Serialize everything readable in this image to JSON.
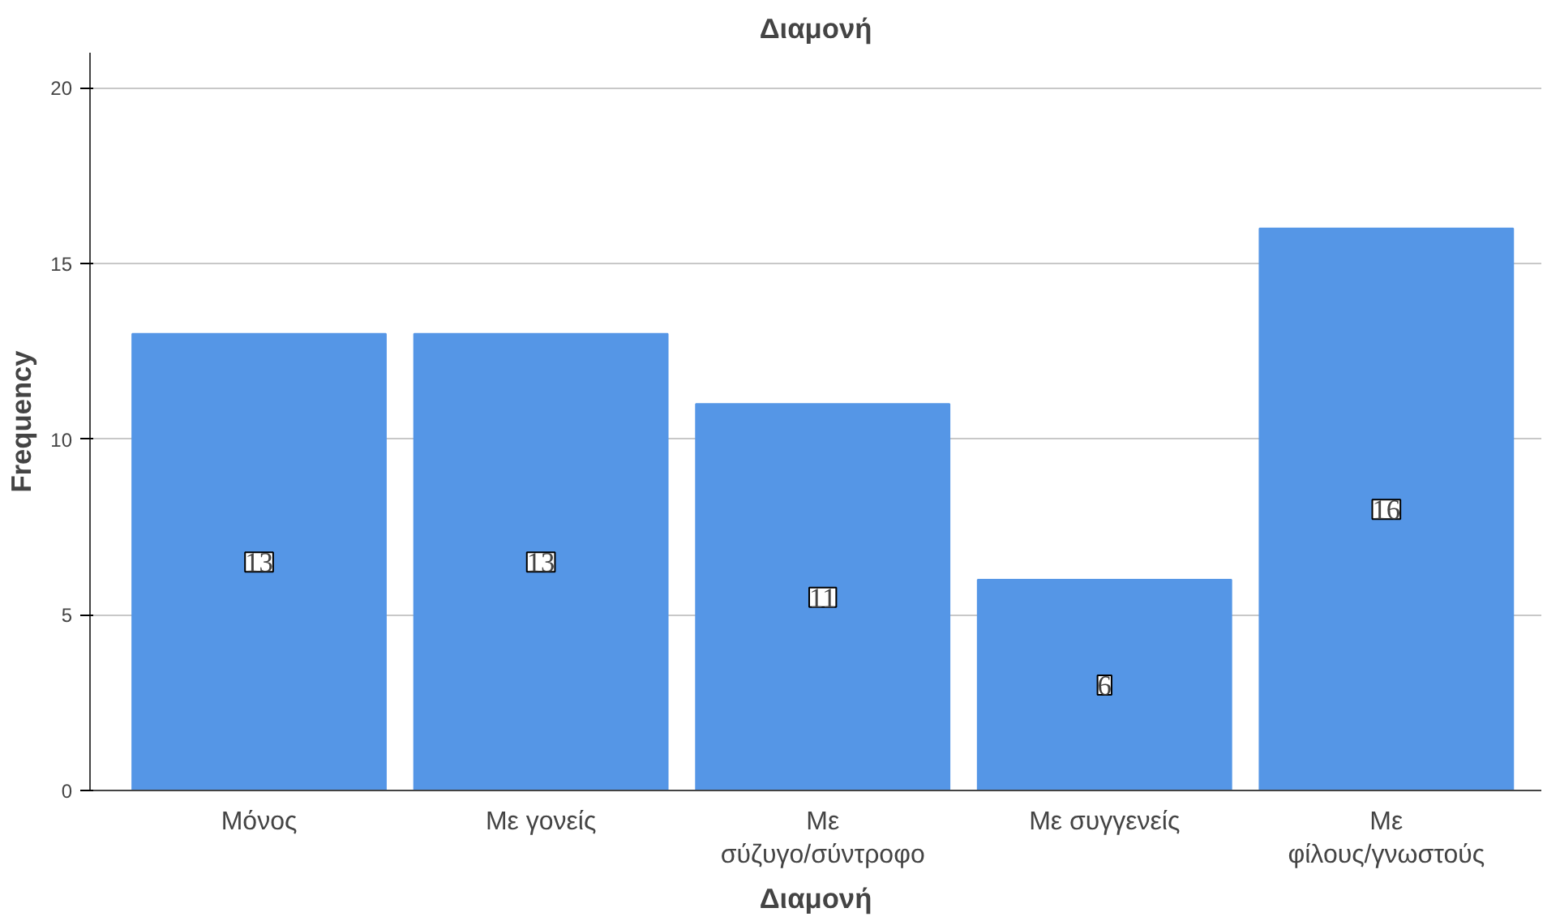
{
  "chart_data": {
    "type": "bar",
    "title": "Διαμονή",
    "xlabel": "Διαμονή",
    "ylabel": "Frequency",
    "categories": [
      "Μόνος",
      "Με γονείς",
      "Με σύζυγο/σύντροφο",
      "Με συγγενείς",
      "Με φίλους/γνωστούς"
    ],
    "values": [
      13,
      13,
      11,
      6,
      16
    ],
    "color": "#5596e6",
    "ylim": [
      0,
      21
    ],
    "yticks": [
      0,
      5,
      10,
      15,
      20
    ],
    "grid": "y",
    "data_labels": true
  }
}
